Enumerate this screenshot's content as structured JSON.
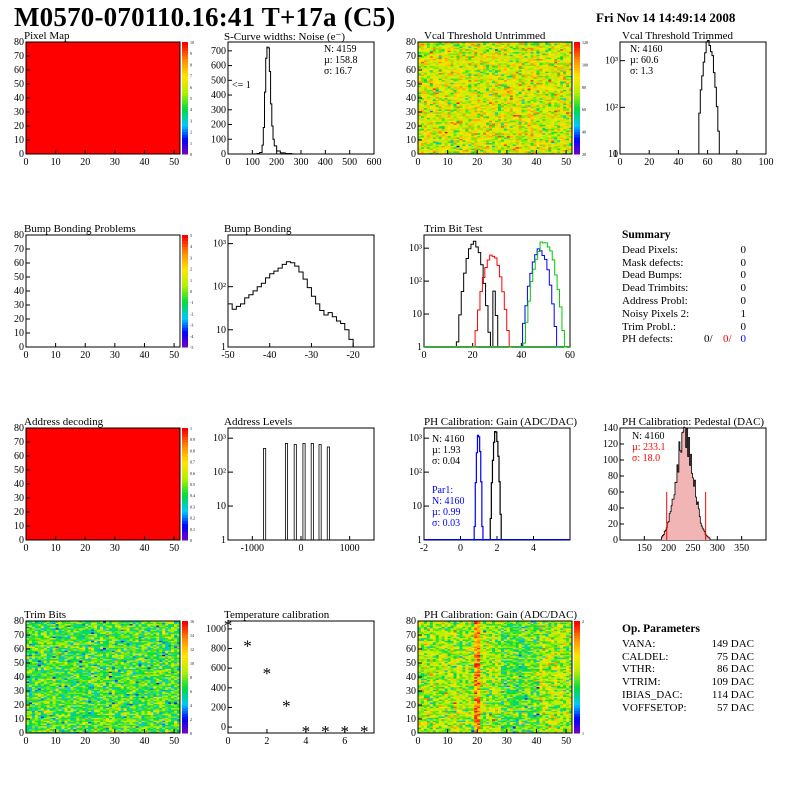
{
  "header": {
    "title": "M0570-070110.16:41 T+17a (C5)",
    "date": "Fri Nov 14 14:49:14 2008"
  },
  "colors": {
    "red": "#ff0000",
    "blue": "#0000ff",
    "green": "#00cc00",
    "black": "#000000"
  },
  "chart_data": [
    {
      "id": "pixel_map",
      "type": "heatmap",
      "title": "Pixel Map",
      "xlim": [
        0,
        52
      ],
      "ylim": [
        0,
        80
      ],
      "xticks": [
        0,
        10,
        20,
        30,
        40,
        50
      ],
      "yticks": [
        0,
        10,
        20,
        30,
        40,
        50,
        60,
        70,
        80
      ],
      "zlim": [
        0,
        10
      ],
      "zticks": [
        0,
        1,
        2,
        3,
        4,
        5,
        6,
        7,
        8,
        9,
        10
      ],
      "fill": "uniform-max"
    },
    {
      "id": "scurve",
      "type": "histogram",
      "title": "S-Curve widths: Noise (e⁻)",
      "xlim": [
        0,
        600
      ],
      "ylim": [
        0,
        760
      ],
      "xticks": [
        0,
        100,
        200,
        300,
        400,
        500,
        600
      ],
      "yticks": [
        0,
        100,
        200,
        300,
        400,
        500,
        600,
        700
      ],
      "bins": [
        [
          110,
          1
        ],
        [
          120,
          3
        ],
        [
          130,
          10
        ],
        [
          140,
          60
        ],
        [
          145,
          180
        ],
        [
          150,
          420
        ],
        [
          155,
          650
        ],
        [
          160,
          725
        ],
        [
          165,
          720
        ],
        [
          170,
          560
        ],
        [
          175,
          340
        ],
        [
          180,
          190
        ],
        [
          185,
          100
        ],
        [
          190,
          55
        ],
        [
          200,
          20
        ],
        [
          215,
          8
        ],
        [
          235,
          3
        ],
        [
          260,
          1
        ]
      ],
      "stats": [
        "N: 4159",
        "µ: 158.8",
        "σ: 16.7"
      ],
      "annotation": "<= 1"
    },
    {
      "id": "vcal_untrimmed",
      "type": "heatmap",
      "title": "Vcal Threshold Untrimmed",
      "xlim": [
        0,
        52
      ],
      "ylim": [
        0,
        80
      ],
      "xticks": [
        0,
        10,
        20,
        30,
        40,
        50
      ],
      "yticks": [
        0,
        10,
        20,
        30,
        40,
        50,
        60,
        70,
        80
      ],
      "zticks": [
        20,
        40,
        60,
        80,
        100,
        120
      ],
      "mean_level": 0.62,
      "spread": 0.12
    },
    {
      "id": "vcal_trimmed",
      "type": "histogram",
      "title": "Vcal Threshold Trimmed",
      "yscale": "log",
      "xlim": [
        0,
        100
      ],
      "xticks": [
        0,
        20,
        40,
        60,
        80,
        100
      ],
      "ylog": [
        1,
        3.4
      ],
      "yticklabels": [
        "1",
        "10",
        "10²",
        "10³"
      ],
      "mu": 60.6,
      "sigma": 1.3,
      "peak": 2500,
      "stats": [
        "N: 4160",
        "µ: 60.6",
        "σ:  1.3"
      ]
    },
    {
      "id": "bump_problems",
      "type": "heatmap",
      "title": "Bump Bonding Problems",
      "xlim": [
        0,
        52
      ],
      "ylim": [
        0,
        80
      ],
      "xticks": [
        0,
        10,
        20,
        30,
        40,
        50
      ],
      "yticks": [
        0,
        10,
        20,
        30,
        40,
        50,
        60,
        70,
        80
      ],
      "zticks": [
        -5,
        -4,
        -3,
        -2,
        -1,
        0,
        1,
        2,
        3,
        4,
        5
      ],
      "fill": "empty"
    },
    {
      "id": "bump_bonding",
      "type": "histogram",
      "title": "Bump Bonding",
      "yscale": "log",
      "xlim": [
        -50,
        -15
      ],
      "xticks": [
        -50,
        -40,
        -30,
        -20
      ],
      "ylog": [
        0.6,
        3.2
      ],
      "yticklabels": [
        "1",
        "10",
        "10²",
        "10³"
      ],
      "bins": [
        [
          -50,
          40
        ],
        [
          -49,
          30
        ],
        [
          -48,
          35
        ],
        [
          -47,
          40
        ],
        [
          -46,
          55
        ],
        [
          -45,
          65
        ],
        [
          -44,
          80
        ],
        [
          -43,
          100
        ],
        [
          -42,
          120
        ],
        [
          -41,
          160
        ],
        [
          -40,
          200
        ],
        [
          -39,
          230
        ],
        [
          -38,
          270
        ],
        [
          -37,
          330
        ],
        [
          -36,
          380
        ],
        [
          -35,
          360
        ],
        [
          -34,
          300
        ],
        [
          -33,
          220
        ],
        [
          -32,
          150
        ],
        [
          -31,
          95
        ],
        [
          -30,
          60
        ],
        [
          -29,
          40
        ],
        [
          -28,
          28
        ],
        [
          -27,
          22
        ],
        [
          -26,
          25
        ],
        [
          -25,
          20
        ],
        [
          -24,
          16
        ],
        [
          -23,
          14
        ],
        [
          -22,
          10
        ],
        [
          -21,
          6
        ],
        [
          -20,
          3
        ],
        [
          -19,
          1.5
        ],
        [
          -18,
          1
        ]
      ]
    },
    {
      "id": "trim_bit_test",
      "type": "histogram",
      "title": "Trim Bit Test",
      "yscale": "log",
      "xlim": [
        0,
        60
      ],
      "xticks": [
        0,
        20,
        40,
        60
      ],
      "ylog": [
        0,
        3.4
      ],
      "yticklabels": [
        "1",
        "10",
        "10²",
        "10³"
      ],
      "series": [
        {
          "color": "#000000",
          "mu": 20.5,
          "sigma": 1.8,
          "peak": 1500,
          "mu2": 25.5,
          "sigma2": 1.4,
          "peak2": 900
        },
        {
          "color": "#ff0000",
          "mu": 28,
          "sigma": 2.0,
          "peak": 600
        },
        {
          "color": "#0000ff",
          "mu": 47.5,
          "sigma": 2.0,
          "peak": 900
        },
        {
          "color": "#00cc00",
          "mu": 49.5,
          "sigma": 2.2,
          "peak": 1600
        }
      ]
    },
    {
      "id": "address_decoding",
      "type": "heatmap",
      "title": "Address decoding",
      "xlim": [
        0,
        52
      ],
      "ylim": [
        0,
        80
      ],
      "xticks": [
        0,
        10,
        20,
        30,
        40,
        50
      ],
      "yticks": [
        0,
        10,
        20,
        30,
        40,
        50,
        60,
        70,
        80
      ],
      "zticks": [
        0,
        0.1,
        0.2,
        0.3,
        0.4,
        0.5,
        0.6,
        0.7,
        0.8,
        0.9,
        1
      ],
      "fill": "uniform-max"
    },
    {
      "id": "address_levels",
      "type": "histogram",
      "title": "Address Levels",
      "yscale": "log",
      "xlim": [
        -1500,
        1500
      ],
      "xticks": [
        -1000,
        0,
        1000
      ],
      "ylog": [
        0,
        3.3
      ],
      "yticklabels": [
        "1",
        "10",
        "10²",
        "10³"
      ],
      "spikes": [
        [
          -750,
          500
        ],
        [
          -300,
          700
        ],
        [
          -120,
          650
        ],
        [
          60,
          700
        ],
        [
          230,
          700
        ],
        [
          390,
          650
        ],
        [
          560,
          550
        ]
      ]
    },
    {
      "id": "ph_gain",
      "type": "histogram",
      "title": "PH Calibration: Gain (ADC/DAC)",
      "yscale": "log",
      "xlim": [
        -2,
        6
      ],
      "xticks": [
        -2,
        0,
        2,
        4
      ],
      "ylog": [
        0,
        3.3
      ],
      "yticklabels": [
        "1",
        "10",
        "10²",
        "10³"
      ],
      "series": [
        {
          "color": "#000000",
          "mu": 1.93,
          "sigma": 0.04,
          "peak": 1500,
          "stats": [
            "N: 4160",
            "µ: 1.93",
            "σ: 0.04"
          ]
        },
        {
          "color": "#0000ff",
          "mu": 0.99,
          "sigma": 0.03,
          "peak": 1300,
          "stats": [
            "Par1:",
            "N: 4160",
            "µ: 0.99",
            "σ: 0.03"
          ]
        }
      ]
    },
    {
      "id": "ph_pedestal",
      "type": "histogram",
      "title": "PH Calibration: Pedestal (DAC)",
      "xlim": [
        100,
        400
      ],
      "ylim": [
        0,
        140
      ],
      "xticks": [
        150,
        200,
        250,
        300,
        350
      ],
      "yticks": [
        0,
        20,
        40,
        60,
        80,
        100,
        120,
        140
      ],
      "mu": 233.1,
      "sigma": 18.0,
      "peak": 130,
      "cut_lines": [
        196,
        276
      ],
      "cut_height": 60,
      "stats": [
        "N: 4160",
        "µ: 233.1",
        "σ: 18.0"
      ]
    },
    {
      "id": "trim_bits",
      "type": "heatmap",
      "title": "Trim Bits",
      "xlim": [
        0,
        52
      ],
      "ylim": [
        0,
        80
      ],
      "xticks": [
        0,
        10,
        20,
        30,
        40,
        50
      ],
      "yticks": [
        0,
        10,
        20,
        30,
        40,
        50,
        60,
        70,
        80
      ],
      "zticks": [
        0,
        2,
        4,
        6,
        8,
        10,
        12,
        14,
        16
      ],
      "mean_level": 0.45,
      "spread": 0.12
    },
    {
      "id": "temperature",
      "type": "scatter",
      "title": "Temperature calibration",
      "xlim": [
        0,
        7.5
      ],
      "ylim": [
        -60,
        1080
      ],
      "xticks": [
        0,
        2,
        4,
        6
      ],
      "yticks": [
        0,
        200,
        400,
        600,
        800,
        1000
      ],
      "x": [
        0,
        1,
        2,
        3,
        4,
        5,
        6,
        7
      ],
      "y": [
        1050,
        840,
        560,
        230,
        -30,
        -30,
        -30,
        -30
      ]
    },
    {
      "id": "ph_gain_map",
      "type": "heatmap",
      "title": "PH Calibration: Gain (ADC/DAC)",
      "xlim": [
        0,
        52
      ],
      "ylim": [
        0,
        80
      ],
      "xticks": [
        0,
        10,
        20,
        30,
        40,
        50
      ],
      "yticks": [
        0,
        10,
        20,
        30,
        40,
        50,
        60,
        70,
        80
      ],
      "zticks": [
        1,
        2
      ],
      "mean_level": 0.55,
      "spread": 0.12
    }
  ],
  "summary": {
    "title": "Summary",
    "rows": [
      {
        "k": "Dead Pixels:",
        "v": "0"
      },
      {
        "k": "Mask defects:",
        "v": "0"
      },
      {
        "k": "Dead Bumps:",
        "v": "0"
      },
      {
        "k": "Dead Trimbits:",
        "v": "0"
      },
      {
        "k": "Address Probl:",
        "v": "0"
      },
      {
        "k": "Noisy Pixels 2:",
        "v": "1"
      },
      {
        "k": "Trim Probl.:",
        "v": "0"
      }
    ],
    "ph_defects": {
      "k": "PH defects:",
      "v1": "0/",
      "v2": "0/",
      "v3": "0"
    }
  },
  "op_params": {
    "title": "Op. Parameters",
    "rows": [
      {
        "k": "VANA:",
        "v": "149 DAC"
      },
      {
        "k": "CALDEL:",
        "v": "75 DAC"
      },
      {
        "k": "VTHR:",
        "v": "86 DAC"
      },
      {
        "k": "VTRIM:",
        "v": "109 DAC"
      },
      {
        "k": "IBIAS_DAC:",
        "v": "114 DAC"
      },
      {
        "k": "VOFFSETOP:",
        "v": "57 DAC"
      }
    ]
  }
}
